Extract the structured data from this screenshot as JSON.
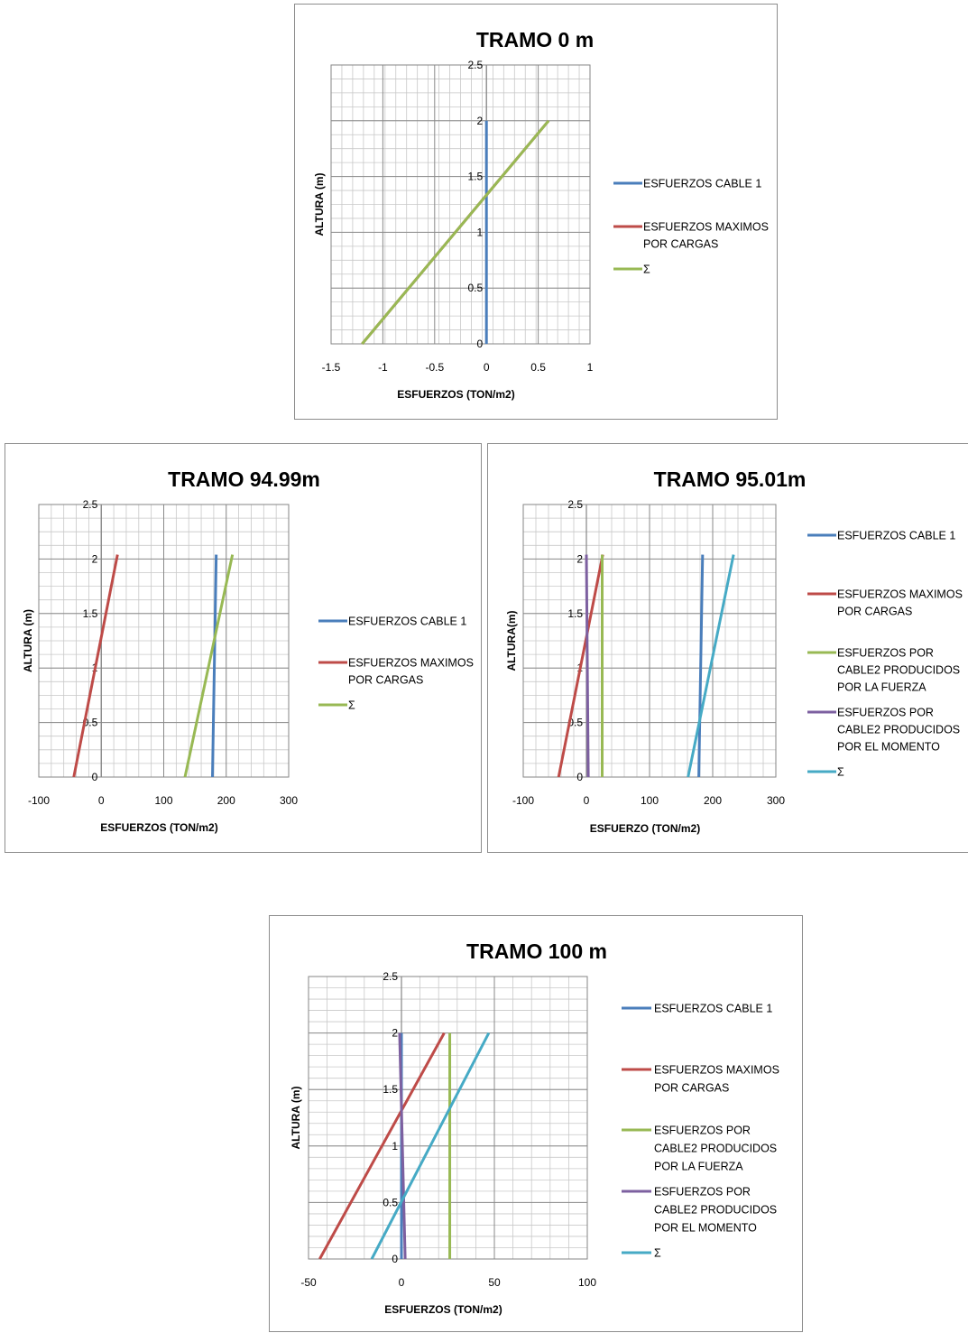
{
  "chart_data": [
    {
      "type": "line",
      "title": "TRAMO 0 m",
      "xlabel": "ESFUERZOS (TON/m2)",
      "ylabel": "ALTURA (m)",
      "xlim": [
        -1.5,
        1
      ],
      "ylim": [
        0,
        2.5
      ],
      "xticks": [
        "-1.5",
        "-1",
        "-0.5",
        "0",
        "0.5",
        "1"
      ],
      "yticks": [
        "0",
        "0.5",
        "1",
        "1.5",
        "2",
        "2.5"
      ],
      "grid": true,
      "legend_position": "right",
      "series": [
        {
          "name": "ESFUERZOS CABLE 1",
          "color": "#4a7ebb",
          "points": [
            [
              0,
              0
            ],
            [
              0,
              2
            ]
          ]
        },
        {
          "name": "ESFUERZOS MAXIMOS POR CARGAS",
          "color": "#be4b48",
          "points": [
            [
              -1.2,
              0
            ],
            [
              0.6,
              2
            ]
          ]
        },
        {
          "name": "Σ",
          "color": "#98b954",
          "points": [
            [
              -1.2,
              0
            ],
            [
              0.6,
              2
            ]
          ]
        }
      ]
    },
    {
      "type": "line",
      "title": "TRAMO 94.99m",
      "xlabel": "ESFUERZOS (TON/m2)",
      "ylabel": "ALTURA (m)",
      "xlim": [
        -100,
        300
      ],
      "ylim": [
        0,
        2.5
      ],
      "xticks": [
        "-100",
        "0",
        "100",
        "200",
        "300"
      ],
      "yticks": [
        "0",
        "0.5",
        "1",
        "1.5",
        "2",
        "2.5"
      ],
      "grid": true,
      "legend_position": "right",
      "series": [
        {
          "name": "ESFUERZOS CABLE 1",
          "color": "#4a7ebb",
          "points": [
            [
              178,
              0
            ],
            [
              184,
              2.04
            ]
          ]
        },
        {
          "name": "ESFUERZOS MAXIMOS POR CARGAS",
          "color": "#be4b48",
          "points": [
            [
              -44,
              0
            ],
            [
              26,
              2.04
            ]
          ]
        },
        {
          "name": "Σ",
          "color": "#98b954",
          "points": [
            [
              134,
              0
            ],
            [
              210,
              2.04
            ]
          ]
        }
      ]
    },
    {
      "type": "line",
      "title": "TRAMO 95.01m",
      "xlabel": "ESFUERZO (TON/m2)",
      "ylabel": "ALTURA(m)",
      "xlim": [
        -100,
        300
      ],
      "ylim": [
        0,
        2.5
      ],
      "xticks": [
        "-100",
        "0",
        "100",
        "200",
        "300"
      ],
      "yticks": [
        "0",
        "0.5",
        "1",
        "1.5",
        "2",
        "2.5"
      ],
      "grid": true,
      "legend_position": "right",
      "series": [
        {
          "name": "ESFUERZOS CABLE 1",
          "color": "#4a7ebb",
          "points": [
            [
              178,
              0
            ],
            [
              184,
              2.04
            ]
          ]
        },
        {
          "name": "ESFUERZOS MAXIMOS POR CARGAS",
          "color": "#be4b48",
          "points": [
            [
              -44,
              0
            ],
            [
              26,
              2.04
            ]
          ]
        },
        {
          "name": "ESFUERZOS POR CABLE2 PRODUCIDOS POR LA FUERZA",
          "color": "#98b954",
          "points": [
            [
              25,
              0
            ],
            [
              25,
              2.04
            ]
          ]
        },
        {
          "name": "ESFUERZOS POR CABLE2 PRODUCIDOS POR EL MOMENTO",
          "color": "#7d60a0",
          "points": [
            [
              3,
              0
            ],
            [
              0,
              2.04
            ]
          ]
        },
        {
          "name": "Σ",
          "color": "#46aac5",
          "points": [
            [
              161,
              0
            ],
            [
              233,
              2.04
            ]
          ]
        }
      ]
    },
    {
      "type": "line",
      "title": "TRAMO 100 m",
      "xlabel": "ESFUERZOS (TON/m2)",
      "ylabel": "ALTURA (m)",
      "xlim": [
        -50,
        100
      ],
      "ylim": [
        0,
        2.5
      ],
      "xticks": [
        "-50",
        "0",
        "50",
        "100"
      ],
      "yticks": [
        "0",
        "0.5",
        "1",
        "1.5",
        "2",
        "2.5"
      ],
      "grid": true,
      "legend_position": "right",
      "series": [
        {
          "name": "ESFUERZOS CABLE 1",
          "color": "#4a7ebb",
          "points": [
            [
              0,
              0
            ],
            [
              0,
              2
            ]
          ]
        },
        {
          "name": "ESFUERZOS MAXIMOS POR CARGAS",
          "color": "#be4b48",
          "points": [
            [
              -44,
              0
            ],
            [
              23,
              2
            ]
          ]
        },
        {
          "name": "ESFUERZOS POR CABLE2 PRODUCIDOS POR LA FUERZA",
          "color": "#98b954",
          "points": [
            [
              26,
              0
            ],
            [
              26,
              2
            ]
          ]
        },
        {
          "name": "ESFUERZOS POR CABLE2 PRODUCIDOS POR EL MOMENTO",
          "color": "#7d60a0",
          "points": [
            [
              2,
              0
            ],
            [
              -1,
              2
            ]
          ]
        },
        {
          "name": "Σ",
          "color": "#46aac5",
          "points": [
            [
              -16,
              0
            ],
            [
              47,
              2
            ]
          ]
        }
      ]
    }
  ]
}
